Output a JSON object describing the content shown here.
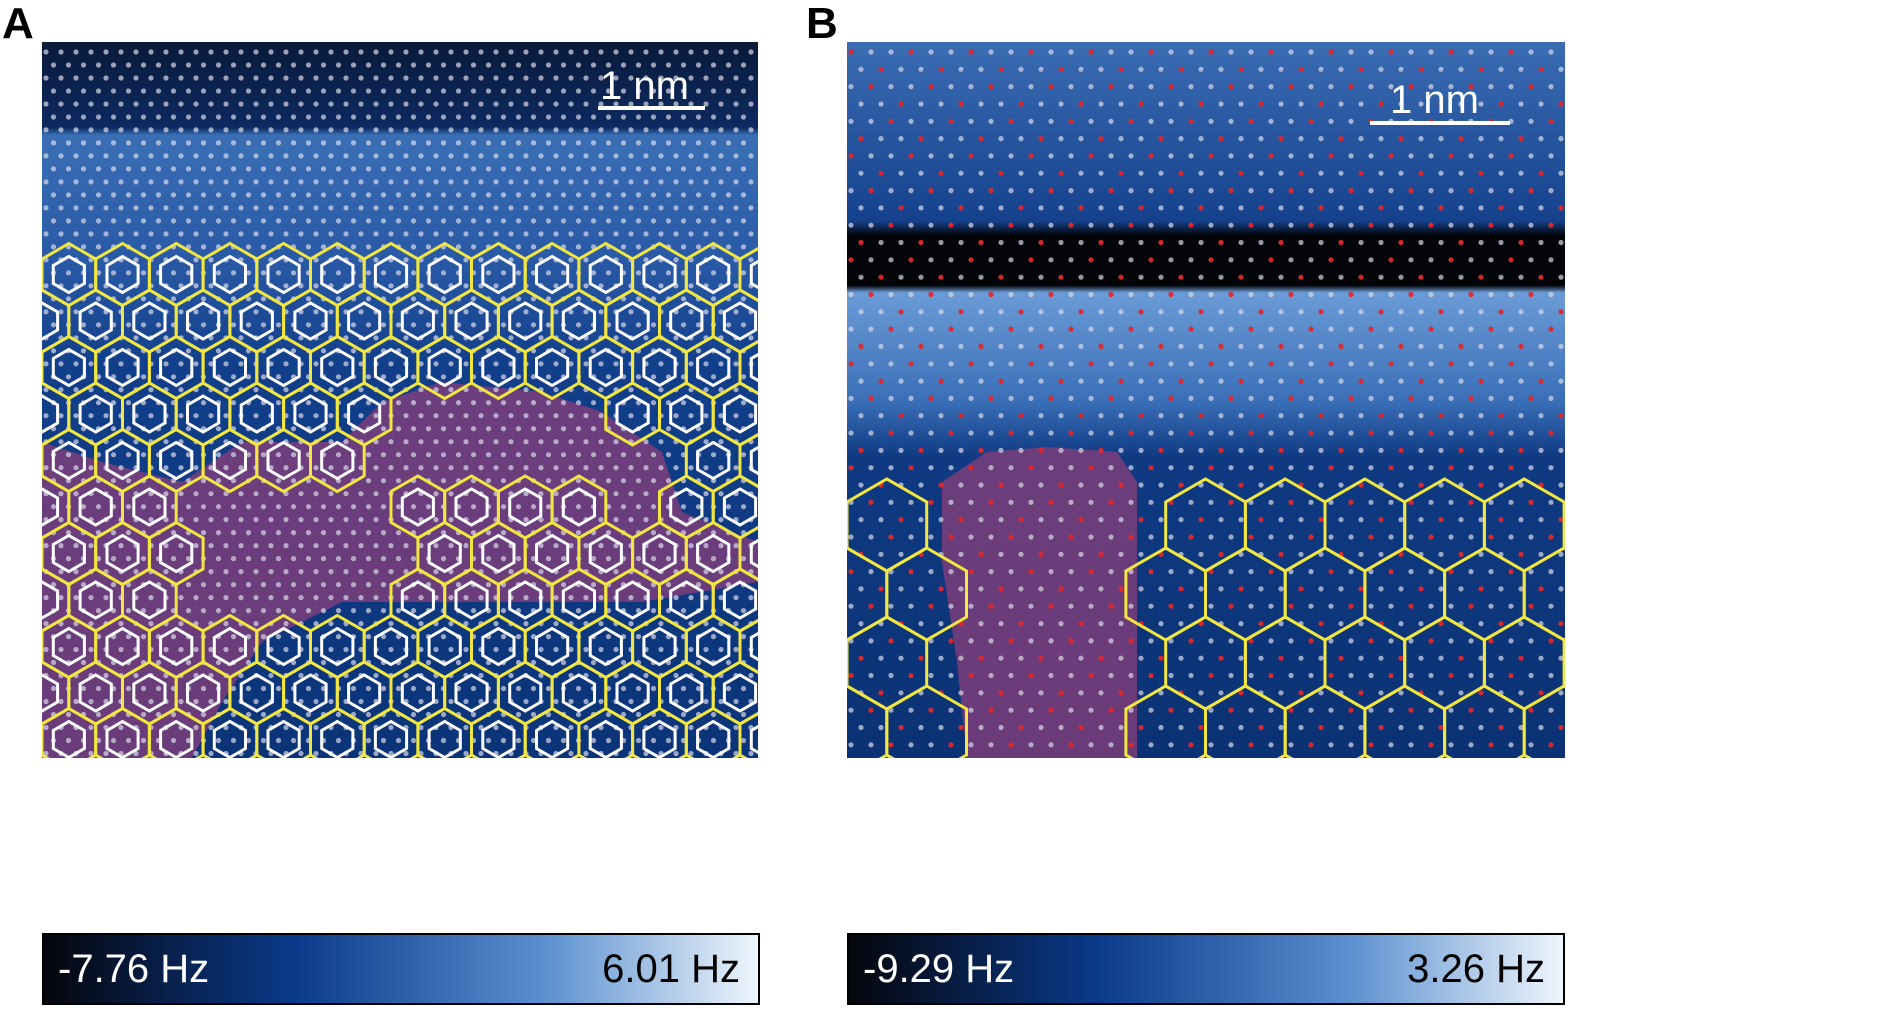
{
  "panels": [
    {
      "label": "A",
      "scale_bar": "1 nm",
      "colorbar": {
        "min": "-7.76 Hz",
        "max": "6.01 Hz",
        "colors": [
          "#05060c",
          "#0a3a8a",
          "#5b8fcf",
          "#eef6fc"
        ]
      }
    },
    {
      "label": "B",
      "scale_bar": "1 nm",
      "colorbar": {
        "min": "-9.29 Hz",
        "max": "3.26 Hz",
        "colors": [
          "#05060c",
          "#0a3a8a",
          "#5b8fcf",
          "#eef6fc"
        ]
      }
    }
  ],
  "colors": {
    "outer_hex": "#f2e640",
    "inner_hex": "#ffffff",
    "highlight_region": "#8b3f7a",
    "marker_red": "#e0282a",
    "marker_white": "#d8d8e8"
  }
}
